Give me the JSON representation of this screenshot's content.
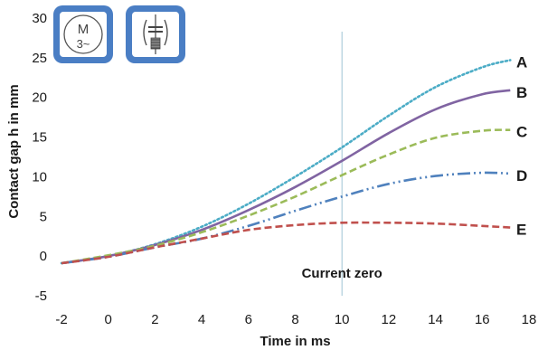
{
  "icons": [
    {
      "name": "motor-icon",
      "symbol": "M",
      "sub": "3~",
      "color": "#4a7ec4"
    },
    {
      "name": "drive-icon",
      "color": "#4a7ec4"
    }
  ],
  "chart_data": {
    "type": "line",
    "title": "",
    "xlabel": "Time in ms",
    "ylabel": "Contact gap h in mm",
    "xlim": [
      -2,
      18
    ],
    "ylim": [
      -5,
      30
    ],
    "xticks": [
      -2,
      0,
      2,
      4,
      6,
      8,
      10,
      12,
      14,
      16,
      18
    ],
    "yticks": [
      -5,
      0,
      5,
      10,
      15,
      20,
      25,
      30
    ],
    "grid": false,
    "annotations": [
      {
        "text": "Current zero",
        "x": 10
      }
    ],
    "series": [
      {
        "name": "A",
        "color": "#4bacc6",
        "dash": "dotted",
        "x": [
          -2,
          0,
          2,
          4,
          6,
          8,
          10,
          12,
          14,
          16,
          17.2
        ],
        "y": [
          -0.9,
          0,
          1.5,
          3.7,
          6.6,
          10,
          13.7,
          17.7,
          21.3,
          23.8,
          24.7
        ]
      },
      {
        "name": "B",
        "color": "#8064a2",
        "dash": "solid",
        "x": [
          -2,
          0,
          2,
          4,
          6,
          8,
          10,
          12,
          14,
          16,
          17.2
        ],
        "y": [
          -0.9,
          0,
          1.4,
          3.3,
          5.8,
          8.7,
          12,
          15.5,
          18.5,
          20.4,
          20.9
        ]
      },
      {
        "name": "C",
        "color": "#9bbb59",
        "dash": "dashed",
        "x": [
          -2,
          0,
          2,
          4,
          6,
          8,
          10,
          12,
          14,
          16,
          17.2
        ],
        "y": [
          -0.9,
          0.1,
          1.3,
          3,
          5.1,
          7.5,
          10.2,
          12.8,
          14.9,
          15.8,
          15.9
        ]
      },
      {
        "name": "D",
        "color": "#4f81bd",
        "dash": "dash-dot-dot",
        "x": [
          -2,
          0,
          2,
          4,
          6,
          8,
          10,
          12,
          14,
          16,
          17.2
        ],
        "y": [
          -0.9,
          -0.1,
          1.1,
          2.2,
          3.8,
          5.7,
          7.5,
          9.1,
          10.1,
          10.5,
          10.4
        ]
      },
      {
        "name": "E",
        "color": "#c0504d",
        "dash": "dashed",
        "x": [
          -2,
          0,
          2,
          4,
          6,
          8,
          10,
          12,
          14,
          16,
          17.2
        ],
        "y": [
          -0.9,
          -0.1,
          1.1,
          2.2,
          3.3,
          3.9,
          4.2,
          4.2,
          4.1,
          3.8,
          3.6
        ]
      }
    ]
  }
}
